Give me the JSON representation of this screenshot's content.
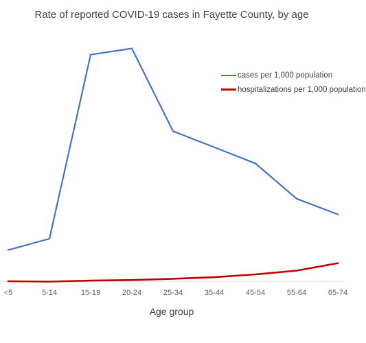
{
  "chart_data": {
    "type": "line",
    "title": "Rate of reported COVID-19 cases in Fayette County, by age",
    "xlabel": "Age group",
    "ylabel": "",
    "categories": [
      "<5",
      "5-14",
      "15-19",
      "20-24",
      "25-34",
      "35-44",
      "45-54",
      "55-64",
      "65-74"
    ],
    "series": [
      {
        "name": "cases per 1,000 population",
        "color": "#4472c4",
        "values": [
          10.0,
          13.6,
          72.5,
          74.5,
          48.0,
          42.9,
          37.7,
          26.4,
          21.4
        ]
      },
      {
        "name": "hospitalizations per 1,000 population",
        "color": "#c00000",
        "values": [
          0.0,
          -0.1,
          0.2,
          0.4,
          0.8,
          1.3,
          2.2,
          3.4,
          5.8
        ]
      }
    ],
    "ylim": [
      0,
      90
    ],
    "grid": false,
    "legend_position": "top-right"
  }
}
